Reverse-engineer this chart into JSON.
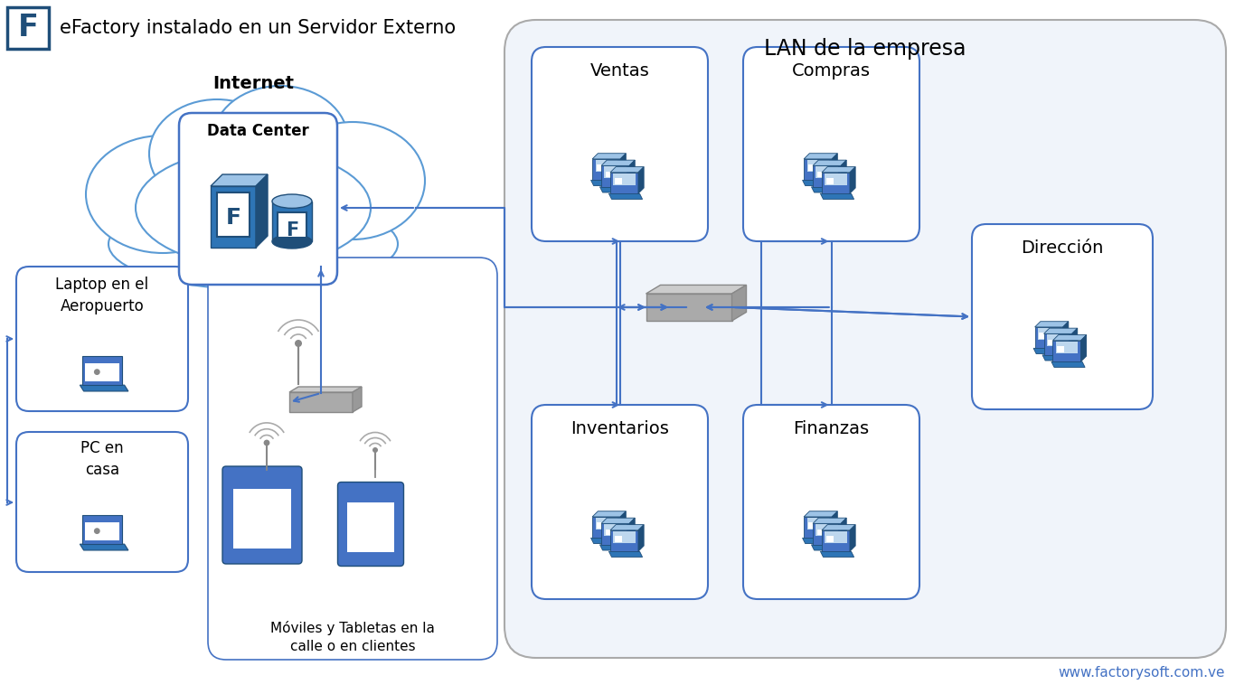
{
  "title": "eFactory instalado en un Servidor Externo",
  "website": "www.factorysoft.com.ve",
  "bg_color": "#ffffff",
  "lan_label": "LAN de la empresa",
  "internet_label": "Internet",
  "datacenter_label": "Data Center",
  "laptop_label": "Laptop en el\nAeropuerto",
  "pc_label": "PC en\ncasa",
  "mobile_label": "Móviles y Tabletas en la\ncalle o en clientes",
  "ventas_label": "Ventas",
  "compras_label": "Compras",
  "inventarios_label": "Inventarios",
  "finanzas_label": "Finanzas",
  "direccion_label": "Dirección",
  "arrow_color": "#4472C4",
  "box_stroke": "#4472C4",
  "box_fill": "#ffffff",
  "lan_stroke": "#aaaaaa",
  "lan_fill": "#f0f4fa",
  "cloud_stroke": "#5B9BD5",
  "cloud_fill": "#ffffff",
  "server_blue_dark": "#1F4E79",
  "server_blue_mid": "#2E75B6",
  "server_blue_light": "#5B9BD5",
  "server_blue_top": "#9DC3E6",
  "text_color": "#000000",
  "title_color": "#000000",
  "website_color": "#4472C4",
  "switch_fill": "#AAAAAA",
  "switch_dark": "#888888",
  "switch_light": "#CCCCCC"
}
